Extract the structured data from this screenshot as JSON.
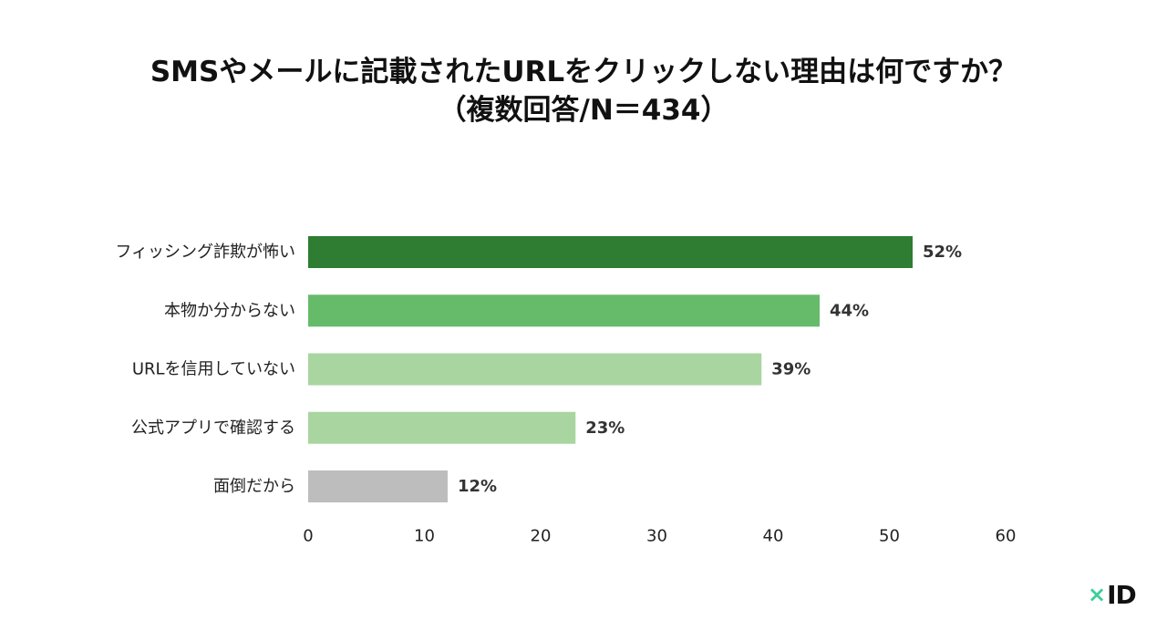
{
  "title": {
    "line1": "SMSやメールに記載されたURLをクリックしない理由は何ですか？",
    "line2": "（複数回答/N＝434）"
  },
  "chart_data": {
    "type": "bar",
    "orientation": "horizontal",
    "categories": [
      "フィッシング詐欺が怖い",
      "本物か分からない",
      "URLを信用していない",
      "公式アプリで確認する",
      "面倒だから"
    ],
    "values": [
      52,
      44,
      39,
      23,
      12
    ],
    "value_labels": [
      "52%",
      "44%",
      "39%",
      "23%",
      "12%"
    ],
    "bar_colors": [
      "#2e7d32",
      "#66bb6a",
      "#a8d5a0",
      "#a8d5a0",
      "#bdbdbd"
    ],
    "xlim": [
      0,
      60
    ],
    "xticks": [
      0,
      10,
      20,
      30,
      40,
      50,
      60
    ],
    "xtick_labels": [
      "0",
      "10",
      "20",
      "30",
      "40",
      "50",
      "60"
    ],
    "grid": false,
    "legend": false
  },
  "logo": {
    "mark": "×",
    "text": "ID",
    "accent_color": "#3ccf9a"
  }
}
